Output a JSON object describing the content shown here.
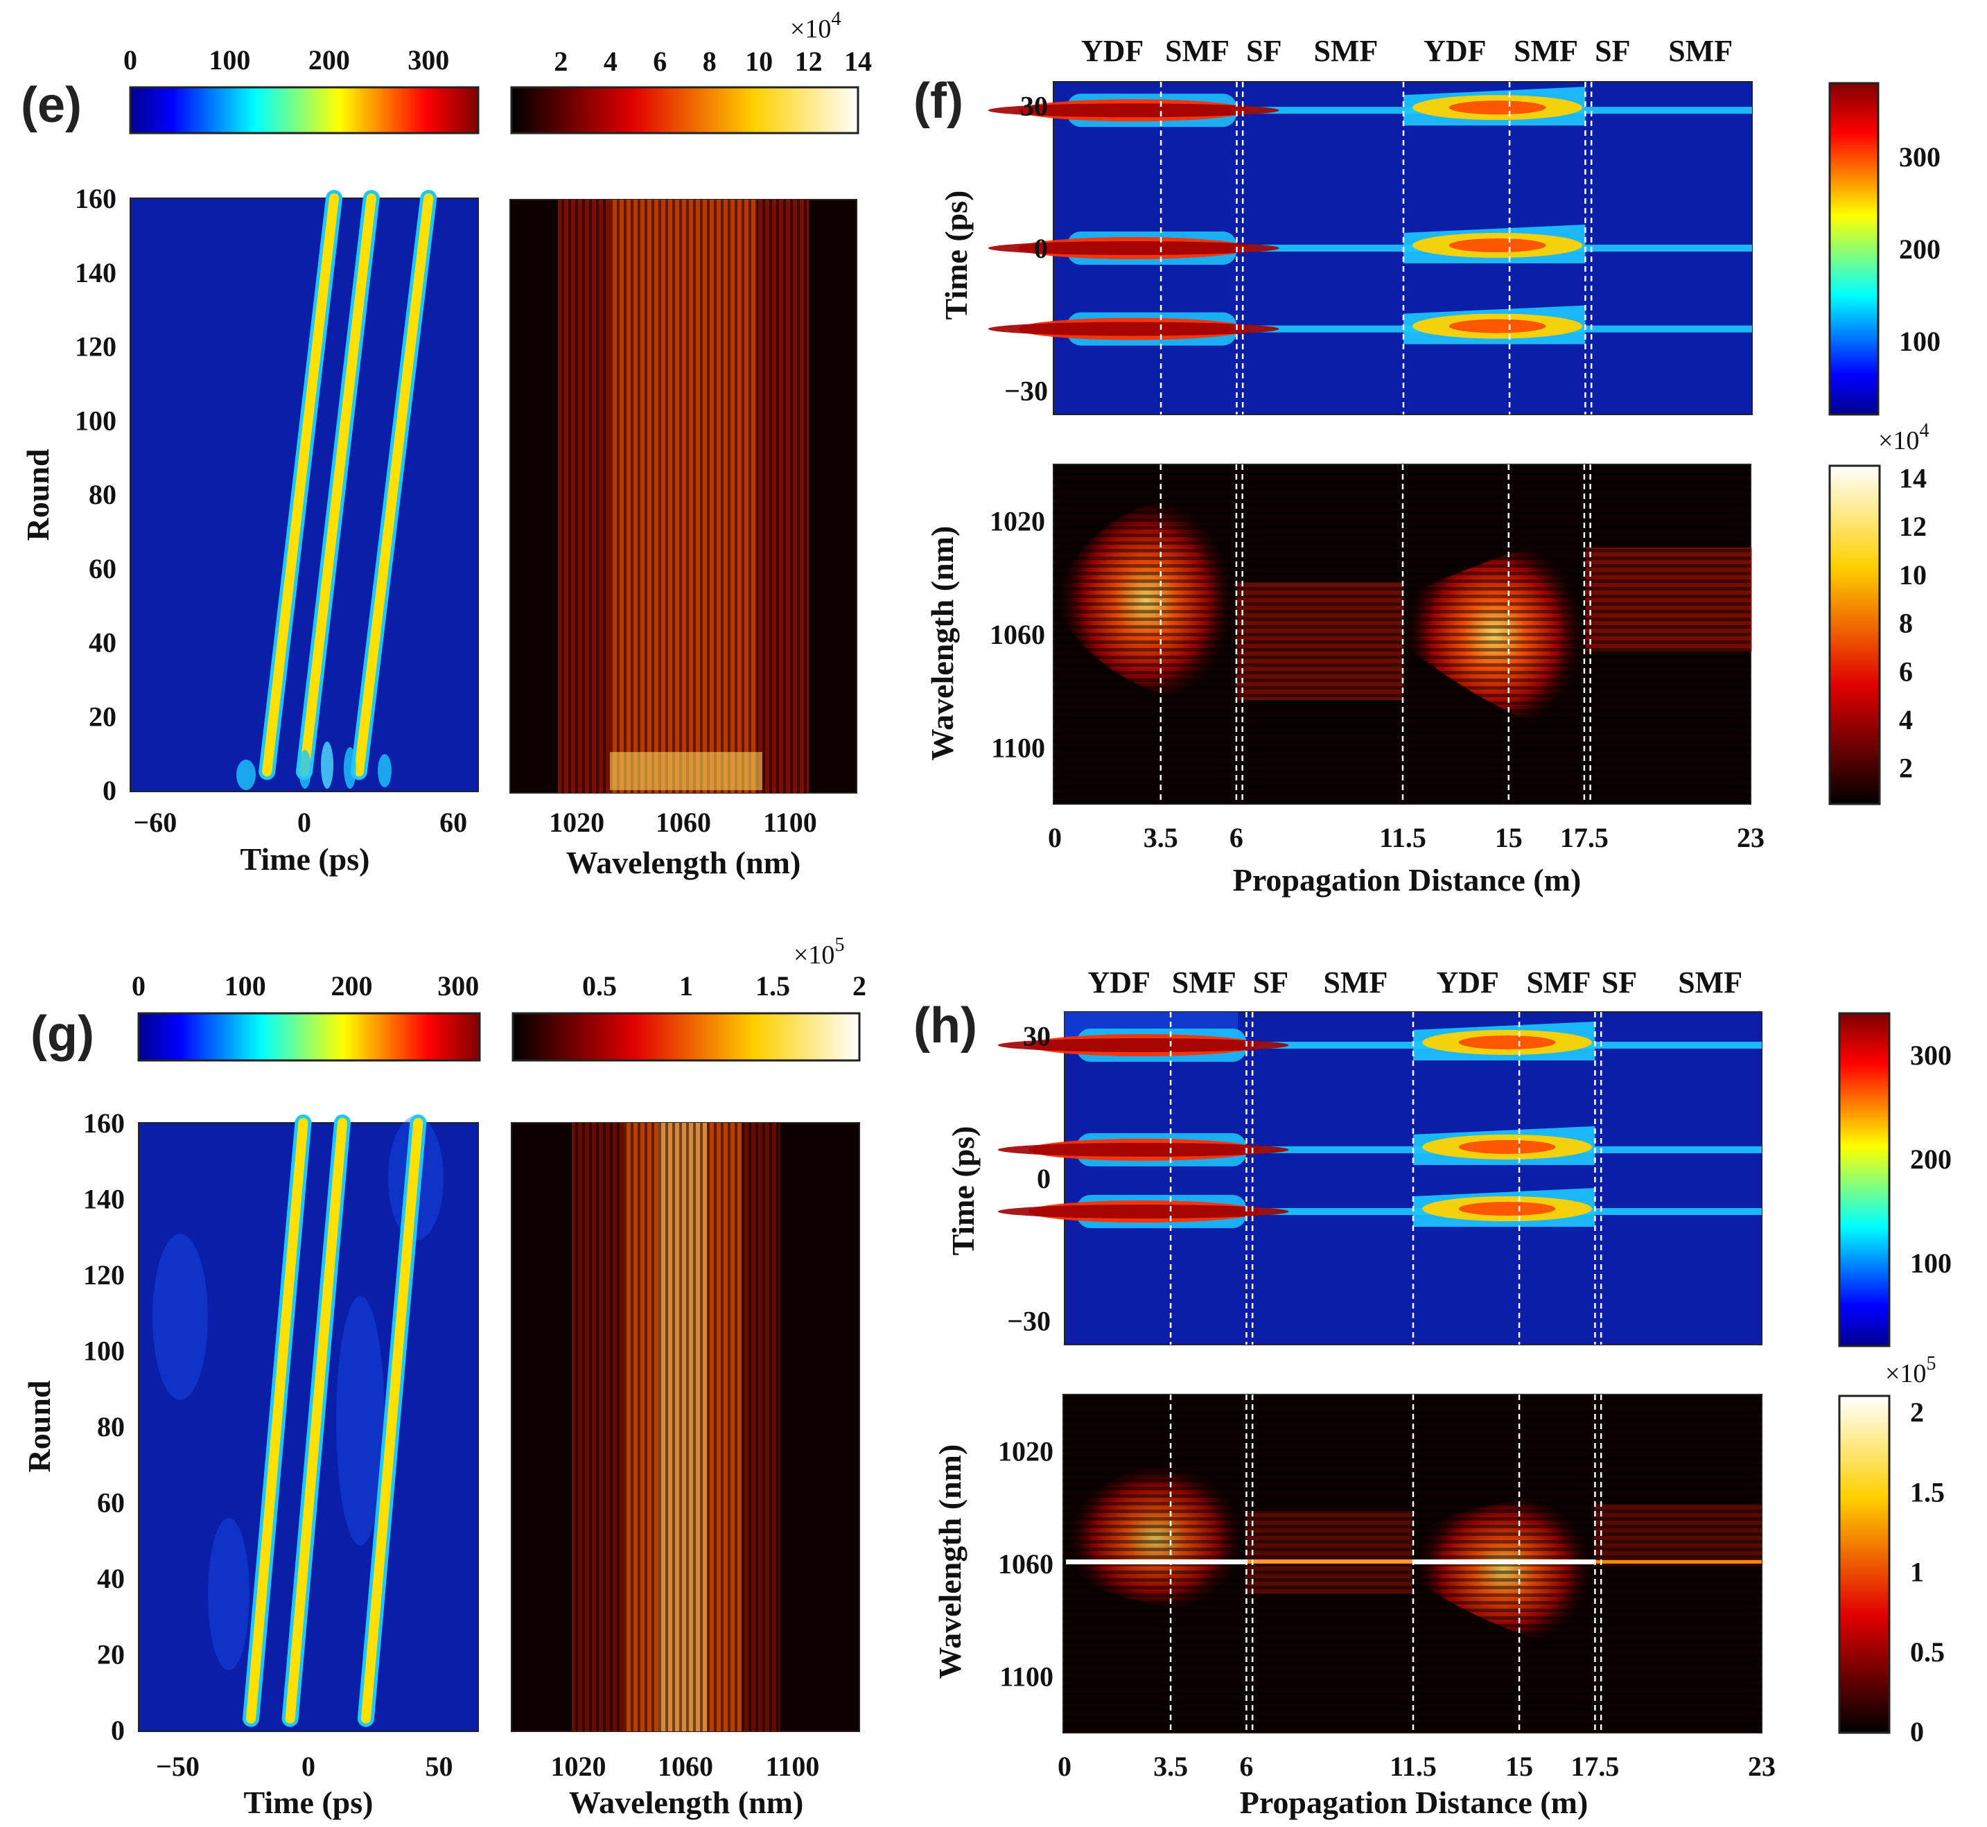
{
  "colors": {
    "panel_background": "#0a1ea8",
    "spectrum_background": "#0c0000",
    "trace_yellow": "#ffe000",
    "trace_cyan": "#1ec8ff",
    "divider": "#ffffff"
  },
  "chart_data": [
    {
      "id": "e",
      "label": "(e)",
      "type": "heatmap",
      "subplots": [
        {
          "name": "temporal-evolution",
          "xlabel": "Time (ps)",
          "ylabel": "Round",
          "xlim": [
            -70,
            70
          ],
          "ylim": [
            0,
            160
          ],
          "xticks": [
            "−60",
            "0",
            "60"
          ],
          "xtick_values": [
            -60,
            0,
            60
          ],
          "yticks": [
            "0",
            "20",
            "40",
            "60",
            "80",
            "100",
            "120",
            "140",
            "160"
          ],
          "ytick_values": [
            0,
            20,
            40,
            60,
            80,
            100,
            120,
            140,
            160
          ],
          "colormap": "jet",
          "colorbar": {
            "ticks": [
              "0",
              "100",
              "200",
              "300"
            ],
            "tick_values": [
              0,
              100,
              200,
              300
            ],
            "range": [
              0,
              350
            ],
            "exponent": ""
          },
          "pulses": [
            {
              "start_time": -15,
              "end_time": 12,
              "start_round": 5,
              "end_round": 160
            },
            {
              "start_time": 0,
              "end_time": 27,
              "start_round": 5,
              "end_round": 160
            },
            {
              "start_time": 22,
              "end_time": 50,
              "start_round": 5,
              "end_round": 160
            }
          ]
        },
        {
          "name": "spectral-evolution",
          "xlabel": "Wavelength (nm)",
          "xlim": [
            995,
            1125
          ],
          "xticks": [
            "1020",
            "1060",
            "1100"
          ],
          "xtick_values": [
            1020,
            1060,
            1100
          ],
          "colormap": "hot",
          "colorbar": {
            "ticks": [
              "2",
              "4",
              "6",
              "8",
              "10",
              "12",
              "14"
            ],
            "tick_values": [
              2,
              4,
              6,
              8,
              10,
              12,
              14
            ],
            "range": [
              0,
              14
            ],
            "exponent": "×10",
            "exponent_power": "4"
          },
          "spectrum_center_nm": 1060,
          "spectrum_halfwidth_nm": 38
        }
      ]
    },
    {
      "id": "f",
      "label": "(f)",
      "type": "heatmap",
      "segments": [
        "YDF",
        "SMF",
        "SF",
        "SMF",
        "YDF",
        "SMF",
        "SF",
        "SMF"
      ],
      "segment_centers_m": [
        1.9,
        4.7,
        6.9,
        9.6,
        13.2,
        16.2,
        18.4,
        21.3
      ],
      "boundaries_m": [
        3.5,
        6,
        6.2,
        11.5,
        15,
        17.5,
        17.7
      ],
      "xlabel": "Propagation Distance (m)",
      "xlim": [
        0,
        23
      ],
      "xticks": [
        "0",
        "3.5",
        "6",
        "11.5",
        "15",
        "17.5",
        "23"
      ],
      "xtick_values": [
        0,
        3.5,
        6,
        11.5,
        15,
        17.5,
        23
      ],
      "subplots": [
        {
          "name": "time-vs-distance",
          "ylabel": "Time (ps)",
          "ylim": [
            -35,
            35
          ],
          "yticks": [
            "−30",
            "0",
            "30"
          ],
          "ytick_values": [
            -30,
            0,
            30
          ],
          "pulse_times_ps": [
            -17,
            0,
            29
          ],
          "colormap": "jet",
          "colorbar": {
            "ticks": [
              "100",
              "200",
              "300"
            ],
            "tick_values": [
              100,
              200,
              300
            ],
            "range": [
              20,
              380
            ],
            "exponent": ""
          }
        },
        {
          "name": "wavelength-vs-distance",
          "ylabel": "Wavelength (nm)",
          "ylim": [
            1000,
            1120
          ],
          "yticks": [
            "1020",
            "1060",
            "1100"
          ],
          "ytick_values": [
            1020,
            1060,
            1100
          ],
          "colormap": "hot",
          "colorbar": {
            "ticks": [
              "2",
              "4",
              "6",
              "8",
              "10",
              "12",
              "14"
            ],
            "tick_values": [
              2,
              4,
              6,
              8,
              10,
              12,
              14
            ],
            "range": [
              0.5,
              14.5
            ],
            "exponent": "×10",
            "exponent_power": "4"
          }
        }
      ]
    },
    {
      "id": "g",
      "label": "(g)",
      "type": "heatmap",
      "subplots": [
        {
          "name": "temporal-evolution",
          "xlabel": "Time (ps)",
          "ylabel": "Round",
          "xlim": [
            -65,
            65
          ],
          "ylim": [
            0,
            160
          ],
          "xticks": [
            "−50",
            "0",
            "50"
          ],
          "xtick_values": [
            -50,
            0,
            50
          ],
          "yticks": [
            "0",
            "20",
            "40",
            "60",
            "80",
            "100",
            "120",
            "140",
            "160"
          ],
          "ytick_values": [
            0,
            20,
            40,
            60,
            80,
            100,
            120,
            140,
            160
          ],
          "colormap": "jet",
          "colorbar": {
            "ticks": [
              "0",
              "100",
              "200",
              "300"
            ],
            "tick_values": [
              0,
              100,
              200,
              300
            ],
            "range": [
              0,
              320
            ],
            "exponent": ""
          },
          "pulses": [
            {
              "start_time": -22,
              "end_time": -2,
              "start_round": 3,
              "end_round": 160
            },
            {
              "start_time": -7,
              "end_time": 13,
              "start_round": 3,
              "end_round": 160
            },
            {
              "start_time": 22,
              "end_time": 42,
              "start_round": 3,
              "end_round": 160
            }
          ]
        },
        {
          "name": "spectral-evolution",
          "xlabel": "Wavelength (nm)",
          "xlim": [
            995,
            1125
          ],
          "xticks": [
            "1020",
            "1060",
            "1100"
          ],
          "xtick_values": [
            1020,
            1060,
            1100
          ],
          "colormap": "hot",
          "colorbar": {
            "ticks": [
              "0.5",
              "1",
              "1.5",
              "2"
            ],
            "tick_values": [
              0.5,
              1,
              1.5,
              2
            ],
            "range": [
              0,
              2
            ],
            "exponent": "×10",
            "exponent_power": "5"
          },
          "spectrum_center_nm": 1062,
          "spectrum_halfwidth_nm": 30
        }
      ]
    },
    {
      "id": "h",
      "label": "(h)",
      "type": "heatmap",
      "segments": [
        "YDF",
        "SMF",
        "SF",
        "SMF",
        "YDF",
        "SMF",
        "SF",
        "SMF"
      ],
      "segment_centers_m": [
        1.8,
        4.6,
        6.8,
        9.6,
        13.3,
        16.3,
        18.3,
        21.3
      ],
      "boundaries_m": [
        3.5,
        6,
        6.2,
        11.5,
        15,
        17.5,
        17.7
      ],
      "xlabel": "Propagation Distance (m)",
      "xlim": [
        0,
        23
      ],
      "xticks": [
        "0",
        "3.5",
        "6",
        "11.5",
        "15",
        "17.5",
        "23"
      ],
      "xtick_values": [
        0,
        3.5,
        6,
        11.5,
        15,
        17.5,
        23
      ],
      "subplots": [
        {
          "name": "time-vs-distance",
          "ylabel": "Time (ps)",
          "ylim": [
            -35,
            35
          ],
          "yticks": [
            "−30",
            "0",
            "30"
          ],
          "ytick_values": [
            -30,
            0,
            30
          ],
          "pulse_times_ps": [
            -7,
            6,
            28
          ],
          "colormap": "jet",
          "colorbar": {
            "ticks": [
              "100",
              "200",
              "300"
            ],
            "tick_values": [
              100,
              200,
              300
            ],
            "range": [
              20,
              340
            ],
            "exponent": ""
          }
        },
        {
          "name": "wavelength-vs-distance",
          "ylabel": "Wavelength (nm)",
          "ylim": [
            1000,
            1120
          ],
          "yticks": [
            "1020",
            "1060",
            "1100"
          ],
          "ytick_values": [
            1020,
            1060,
            1100
          ],
          "colormap": "hot",
          "colorbar": {
            "ticks": [
              "0",
              "0.5",
              "1",
              "1.5",
              "2"
            ],
            "tick_values": [
              0,
              0.5,
              1,
              1.5,
              2
            ],
            "range": [
              0,
              2.1
            ],
            "exponent": "×10",
            "exponent_power": "5"
          }
        }
      ]
    }
  ]
}
